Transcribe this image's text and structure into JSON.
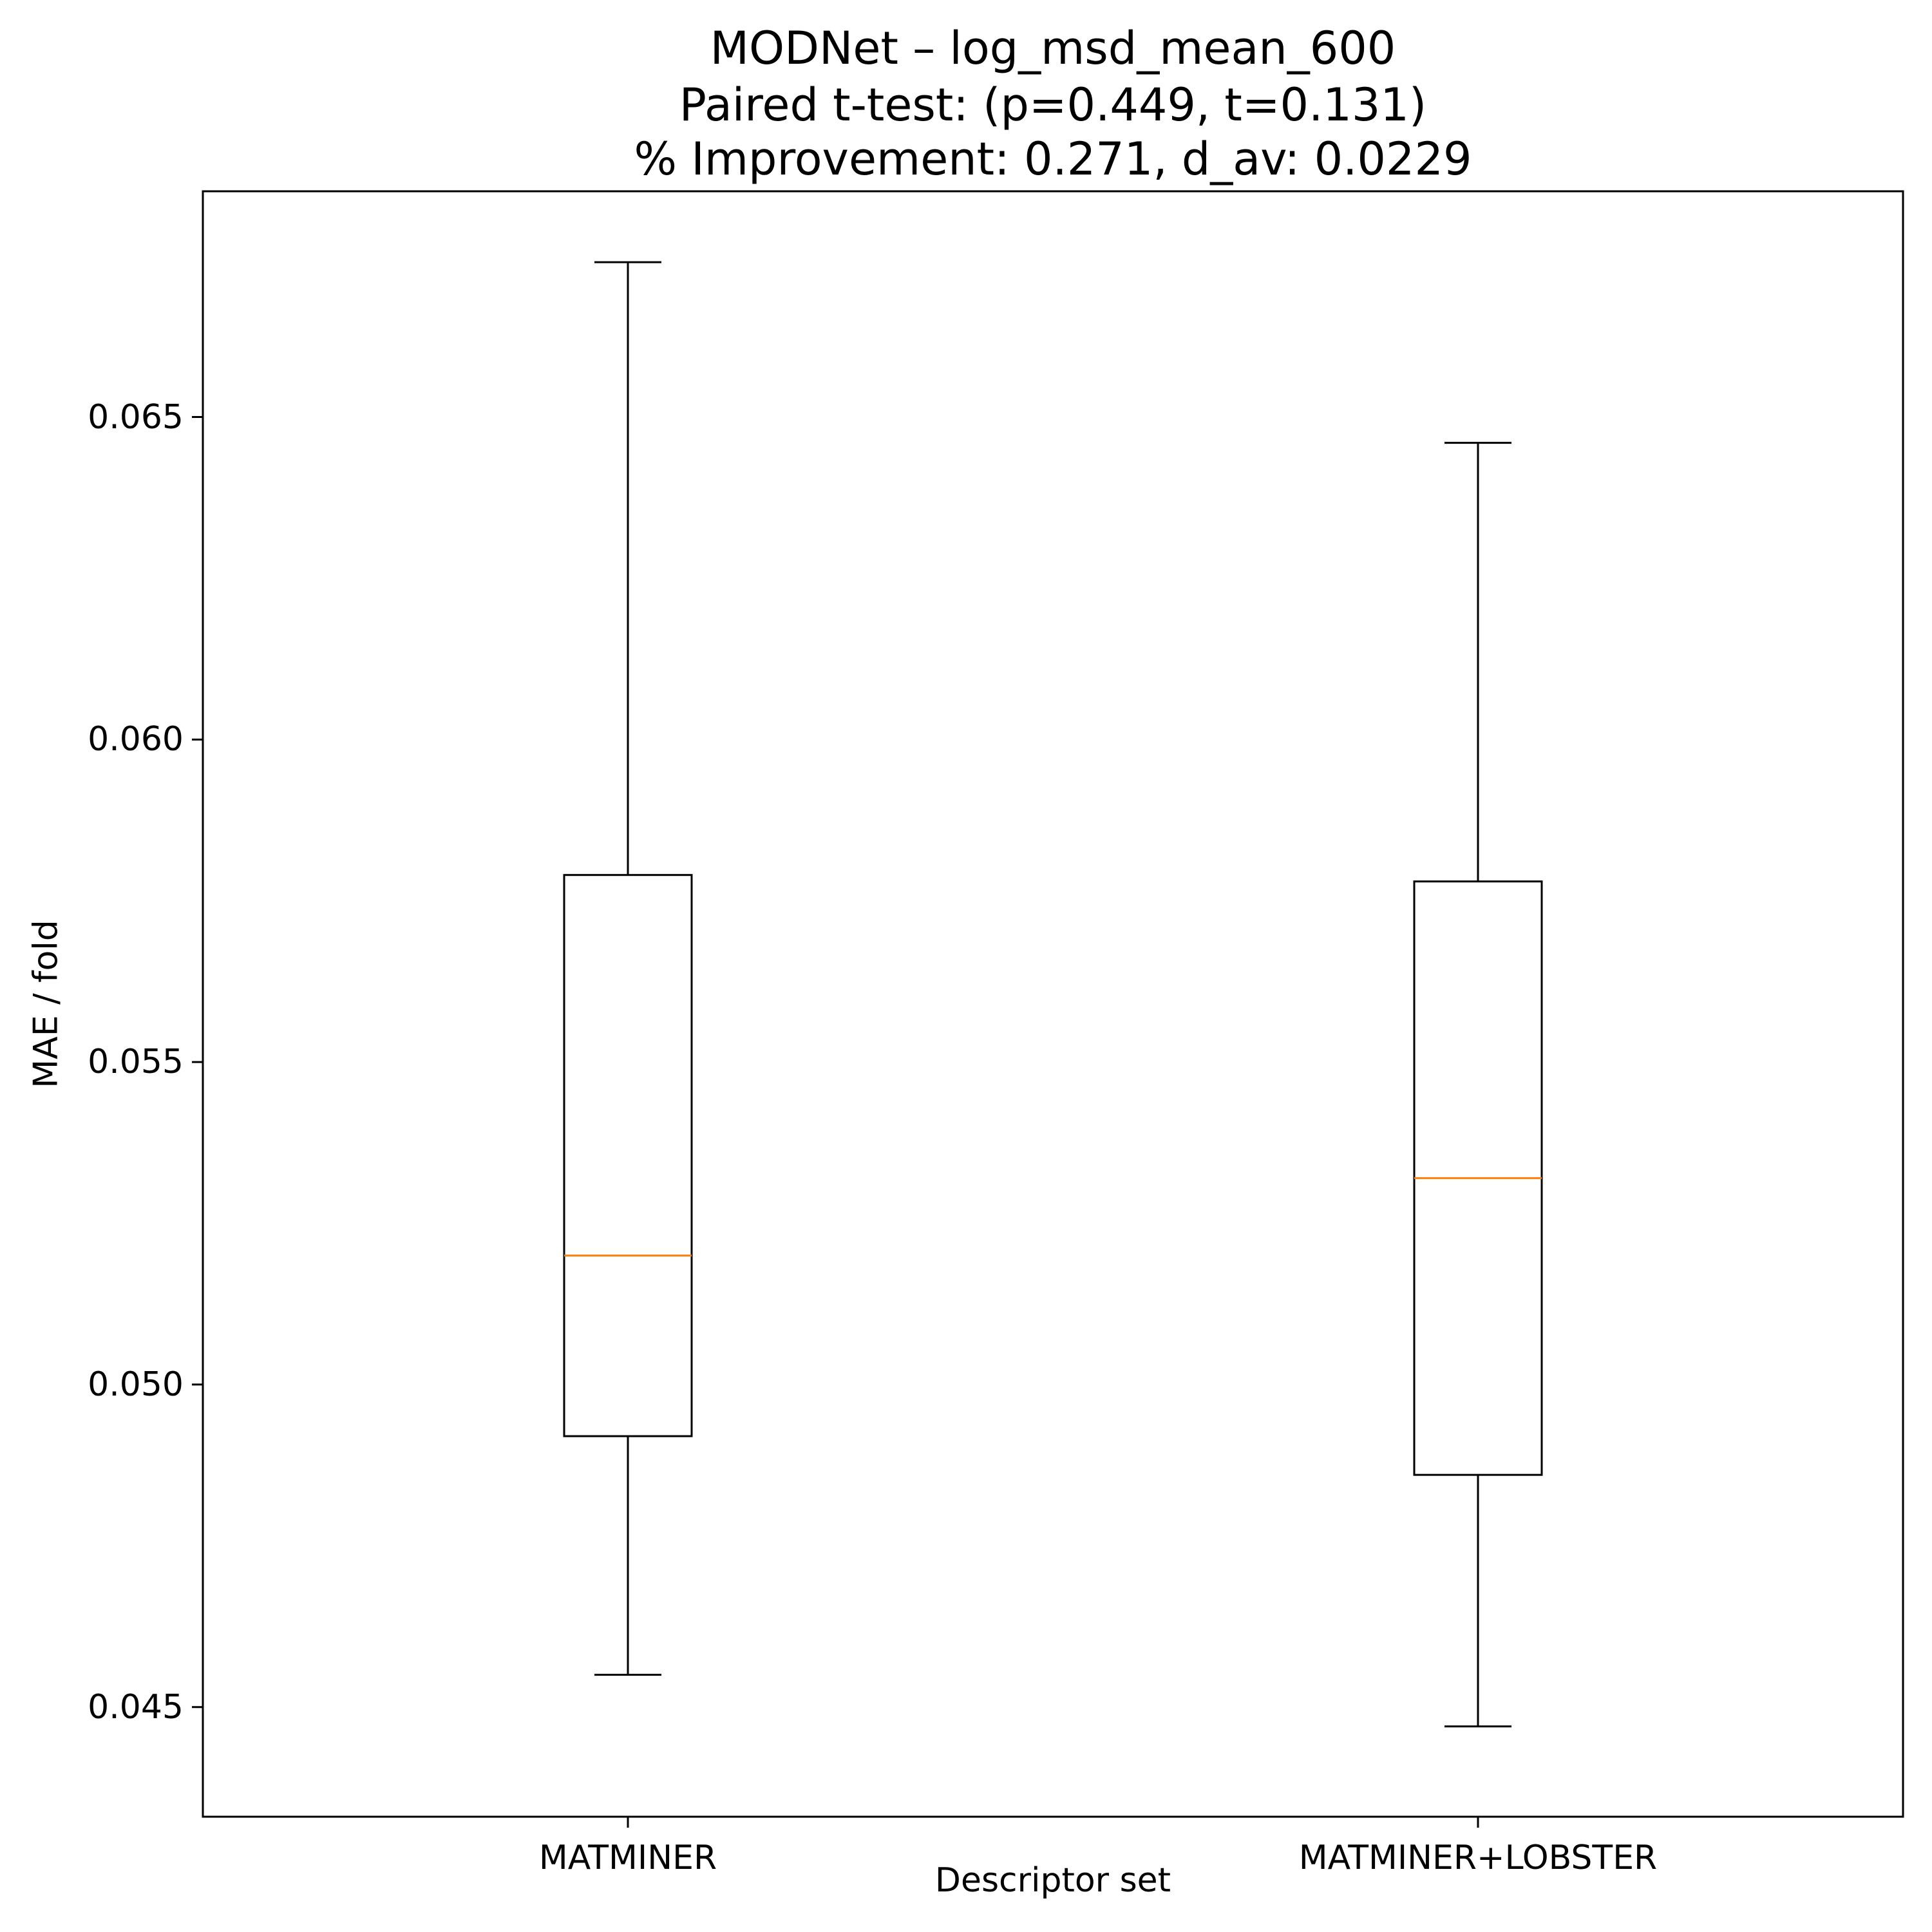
{
  "title": {
    "line1": "MODNet – log_msd_mean_600",
    "line2": "Paired t-test: (p=0.449, t=0.131)",
    "line3": "% Improvement: 0.271, d_av: 0.0229"
  },
  "axes": {
    "xlabel": "Descriptor set",
    "ylabel": "MAE / fold",
    "yticks": [
      "0.045",
      "0.050",
      "0.055",
      "0.060",
      "0.065"
    ],
    "xticks": [
      "MATMINER",
      "MATMINER+LOBSTER"
    ]
  },
  "colors": {
    "box": "#000000",
    "median": "#ff7f0e",
    "background": "#ffffff"
  },
  "chart_data": {
    "type": "box",
    "title": "MODNet – log_msd_mean_600\nPaired t-test: (p=0.449, t=0.131)\n% Improvement: 0.271, d_av: 0.0229",
    "xlabel": "Descriptor set",
    "ylabel": "MAE / fold",
    "categories": [
      "MATMINER",
      "MATMINER+LOBSTER"
    ],
    "series": [
      {
        "name": "MATMINER",
        "whisker_low": 0.0455,
        "q1": 0.0492,
        "median": 0.052,
        "q3": 0.0579,
        "whisker_high": 0.0674
      },
      {
        "name": "MATMINER+LOBSTER",
        "whisker_low": 0.0447,
        "q1": 0.0486,
        "median": 0.0532,
        "q3": 0.0578,
        "whisker_high": 0.0646
      }
    ],
    "ylim": [
      0.0433,
      0.0685
    ],
    "yticks": [
      0.045,
      0.05,
      0.055,
      0.06,
      0.065
    ],
    "grid": false,
    "legend": null,
    "annotations": {
      "p_value": 0.449,
      "t_statistic": 0.131,
      "percent_improvement": 0.271,
      "d_av": 0.0229
    }
  }
}
